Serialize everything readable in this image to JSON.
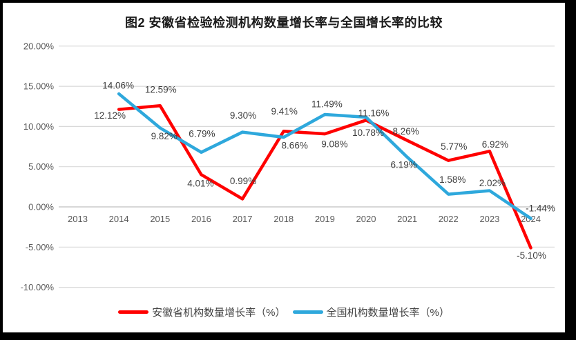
{
  "chart_data": {
    "type": "line",
    "title": "图2 安徽省检验检测机构数量增长率与全国增长率的比较",
    "categories": [
      "2013",
      "2014",
      "2015",
      "2016",
      "2017",
      "2018",
      "2019",
      "2020",
      "2021",
      "2022",
      "2023",
      "2024"
    ],
    "series": [
      {
        "name": "安徽省机构数量增长率（%）",
        "color": "#FF0000",
        "values": [
          null,
          12.12,
          12.59,
          4.01,
          0.99,
          9.41,
          9.08,
          10.78,
          8.26,
          5.77,
          6.92,
          -5.1
        ],
        "labels": [
          null,
          "12.12%",
          "12.59%",
          "4.01%",
          "0.99%",
          "9.41%",
          "9.08%",
          "10.78%",
          "8.26%",
          "5.77%",
          "6.92%",
          "-5.10%"
        ],
        "label_offsets": [
          null,
          [
            -13,
            9
          ],
          [
            1,
            -23
          ],
          [
            -1,
            13
          ],
          [
            1,
            -26
          ],
          [
            1,
            -29
          ],
          [
            14,
            15
          ],
          [
            3,
            18
          ],
          [
            -2,
            -13
          ],
          [
            8,
            -20
          ],
          [
            8,
            -10
          ],
          [
            1,
            11
          ]
        ]
      },
      {
        "name": "全国机构数量增长率（%）",
        "color": "#2EA8DC",
        "values": [
          null,
          14.06,
          9.82,
          6.79,
          9.3,
          8.66,
          11.49,
          11.16,
          6.19,
          1.58,
          2.02,
          -1.44
        ],
        "labels": [
          null,
          "14.06%",
          "9.82%",
          "6.79%",
          "9.30%",
          "8.66%",
          "11.49%",
          "11.16%",
          "6.19%",
          "1.58%",
          "2.02%",
          "-1.44%"
        ],
        "label_offsets": [
          null,
          [
            -1,
            -12
          ],
          [
            6,
            12
          ],
          [
            1,
            -27
          ],
          [
            1,
            -24
          ],
          [
            16,
            12
          ],
          [
            3,
            -15
          ],
          [
            11,
            -6
          ],
          [
            -5,
            11
          ],
          [
            6,
            -21
          ],
          [
            4,
            -11
          ],
          [
            14,
            -15
          ]
        ]
      }
    ],
    "y_axis": {
      "min": -10,
      "max": 20,
      "step": 5,
      "tick_labels": [
        "20.00%",
        "15.00%",
        "10.00%",
        "5.00%",
        "0.00%",
        "-5.00%",
        "-10.00%"
      ]
    },
    "x_axis": {
      "label_side": "below-zero-line"
    },
    "legend": {
      "position": "bottom"
    },
    "grid": true,
    "colors": {
      "grid": "#D9D9D9",
      "zero_axis_line": "#BFBFBF",
      "axis_text": "#595959",
      "data_label_text": "#3F3F3F",
      "frame": "#000000",
      "background": "#FFFFFF"
    }
  }
}
